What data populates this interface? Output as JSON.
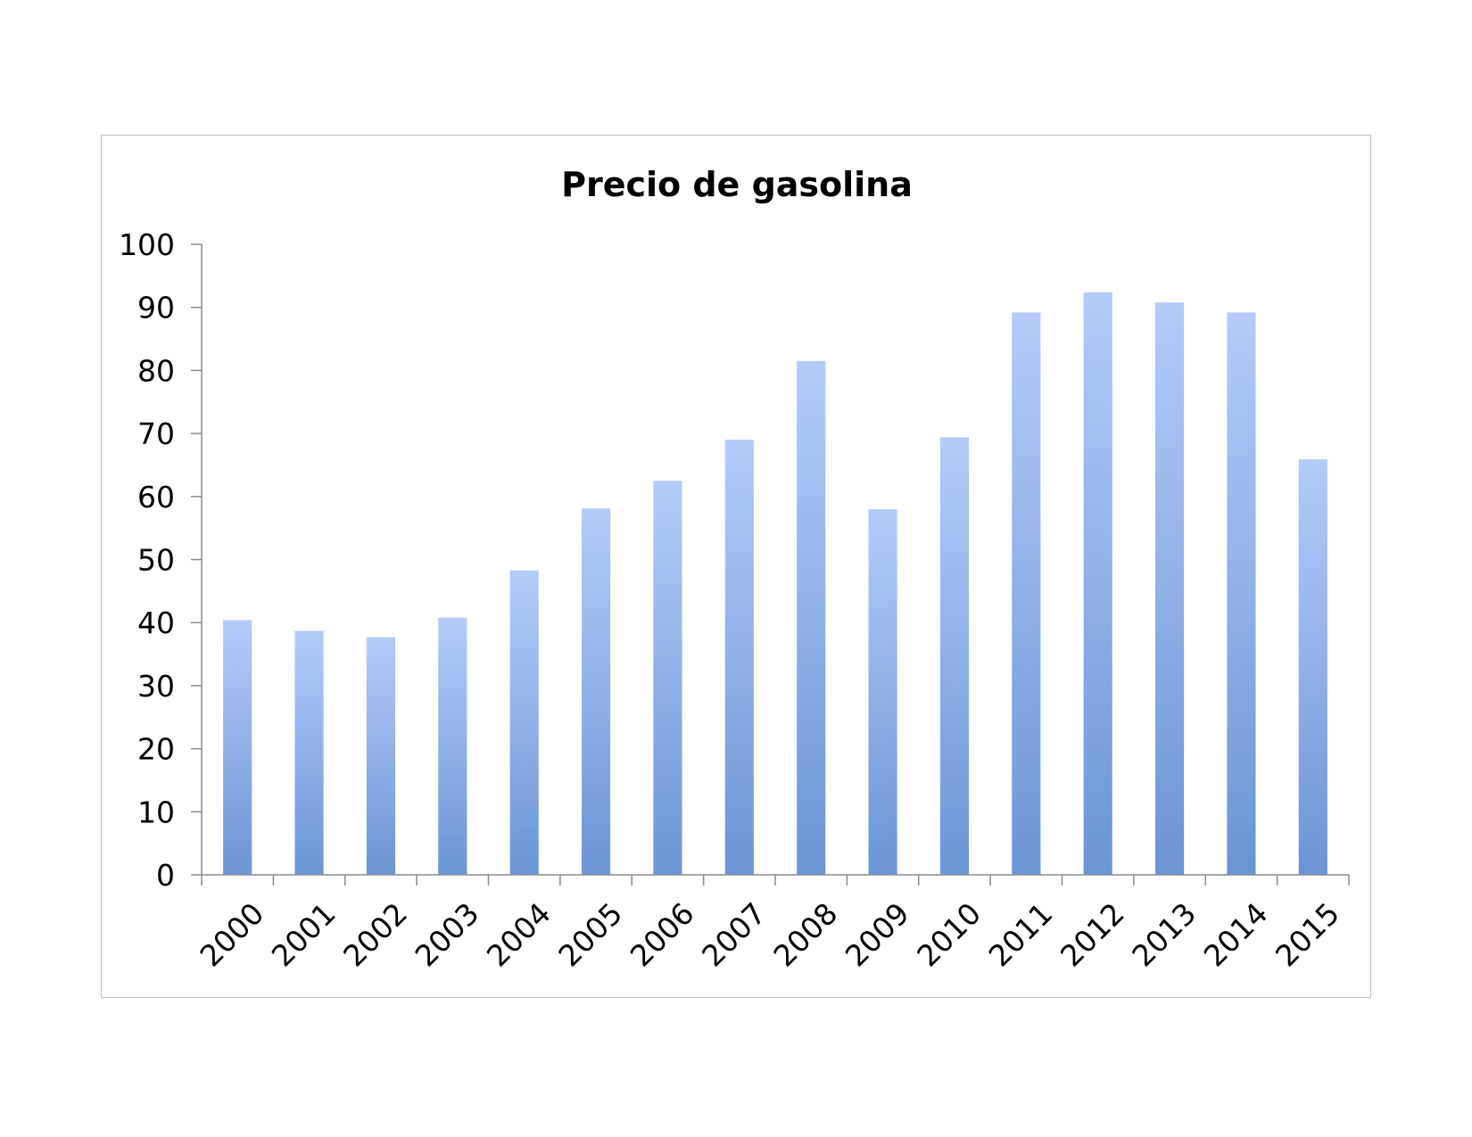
{
  "chart_data": {
    "type": "bar",
    "title": "Precio de gasolina",
    "xlabel": "",
    "ylabel": "",
    "categories": [
      "2000",
      "2001",
      "2002",
      "2003",
      "2004",
      "2005",
      "2006",
      "2007",
      "2008",
      "2009",
      "2010",
      "2011",
      "2012",
      "2013",
      "2014",
      "2015"
    ],
    "values": [
      40.4,
      38.7,
      37.7,
      40.8,
      48.3,
      58.1,
      62.5,
      69.0,
      81.5,
      58.0,
      69.4,
      89.2,
      92.4,
      90.8,
      89.2,
      65.9
    ],
    "ylim": [
      0,
      100
    ],
    "yticks": [
      0,
      10,
      20,
      30,
      40,
      50,
      60,
      70,
      80,
      90,
      100
    ],
    "grid": false,
    "legend": "none",
    "bar_color_top": "#b4cbfa",
    "bar_color_bottom": "#6c95d6",
    "axis_color": "#8c8c8c"
  }
}
